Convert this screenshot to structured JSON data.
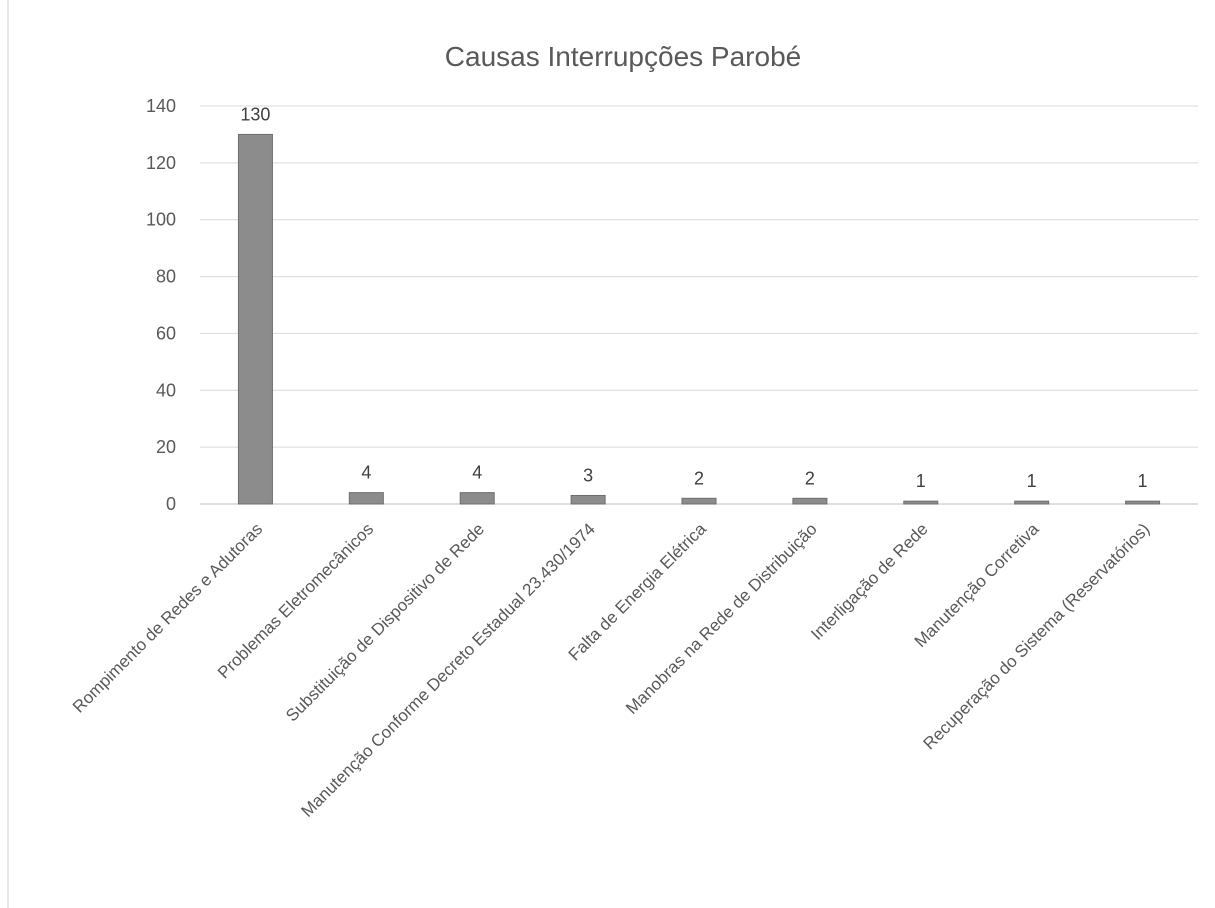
{
  "chart_data": {
    "type": "bar",
    "title": "Causas Interrupções Parobé",
    "xlabel": "",
    "ylabel": "",
    "ylim": [
      0,
      140
    ],
    "yticks": [
      0,
      20,
      40,
      60,
      80,
      100,
      120,
      140
    ],
    "grid": true,
    "legend": "none",
    "categories": [
      "Rompimento de Redes e Adutoras",
      "Problemas Eletromecânicos",
      "Substituição de Dispositivo de Rede",
      "Manutenção Conforme Decreto Estadual 23.430/1974",
      "Falta de Energia Elétrica",
      "Manobras na Rede de Distribuição",
      "Interligação de Rede",
      "Manutenção Corretiva",
      "Recuperação do Sistema (Reservatórios)"
    ],
    "values": [
      130,
      4,
      4,
      3,
      2,
      2,
      1,
      1,
      1
    ],
    "data_labels": [
      "130",
      "4",
      "4",
      "3",
      "2",
      "2",
      "1",
      "1",
      "1"
    ],
    "colors": {
      "bar": "#8c8c8c",
      "grid": "#d9d9d9",
      "text": "#595959"
    }
  }
}
